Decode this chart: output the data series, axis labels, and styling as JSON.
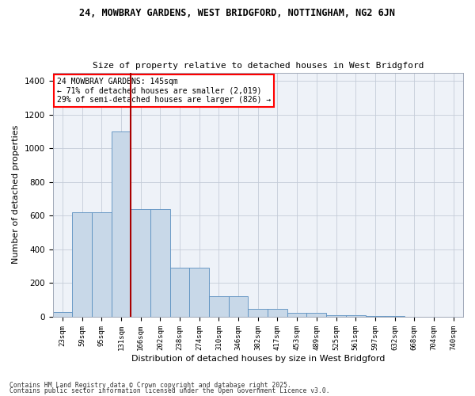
{
  "title1": "24, MOWBRAY GARDENS, WEST BRIDGFORD, NOTTINGHAM, NG2 6JN",
  "title2": "Size of property relative to detached houses in West Bridgford",
  "xlabel": "Distribution of detached houses by size in West Bridgford",
  "ylabel": "Number of detached properties",
  "bar_color": "#c8d8e8",
  "bar_edge_color": "#5a8fc0",
  "categories": [
    "23sqm",
    "59sqm",
    "95sqm",
    "131sqm",
    "166sqm",
    "202sqm",
    "238sqm",
    "274sqm",
    "310sqm",
    "346sqm",
    "382sqm",
    "417sqm",
    "453sqm",
    "489sqm",
    "525sqm",
    "561sqm",
    "597sqm",
    "632sqm",
    "668sqm",
    "704sqm",
    "740sqm"
  ],
  "values": [
    30,
    622,
    622,
    1098,
    638,
    638,
    290,
    290,
    120,
    120,
    48,
    48,
    24,
    24,
    10,
    10,
    5,
    5,
    2,
    2,
    0
  ],
  "ylim": [
    0,
    1450
  ],
  "yticks": [
    0,
    200,
    400,
    600,
    800,
    1000,
    1200,
    1400
  ],
  "vline_x": 3.5,
  "vline_color": "#aa0000",
  "annotation_text": "24 MOWBRAY GARDENS: 145sqm\n← 71% of detached houses are smaller (2,019)\n29% of semi-detached houses are larger (826) →",
  "footer1": "Contains HM Land Registry data © Crown copyright and database right 2025.",
  "footer2": "Contains public sector information licensed under the Open Government Licence v3.0.",
  "bg_color": "#eef2f8",
  "grid_color": "#c5ccd8"
}
